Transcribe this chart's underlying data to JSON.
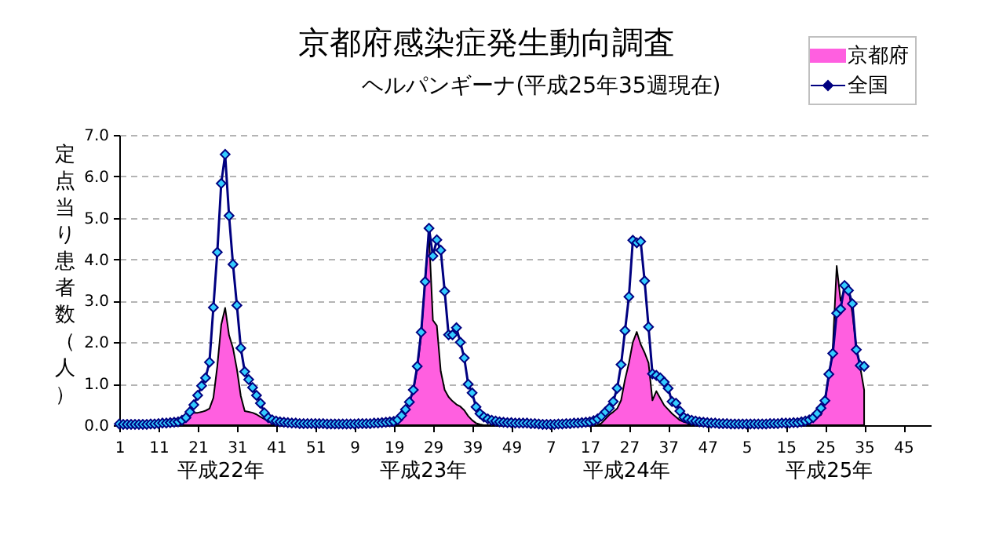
{
  "chart_data": {
    "type": "line",
    "title": "京都府感染症発生動向調査",
    "subtitle": "ヘルパンギーナ(平成25年35週現在)",
    "ylabel": "定点当り患者数（人）",
    "categories": [
      "1",
      null,
      null,
      null,
      null,
      null,
      null,
      null,
      null,
      null,
      "11",
      null,
      null,
      null,
      null,
      null,
      null,
      null,
      null,
      null,
      "21",
      null,
      null,
      null,
      null,
      null,
      null,
      null,
      null,
      null,
      "31",
      null,
      null,
      null,
      null,
      null,
      null,
      null,
      null,
      null,
      "41",
      null,
      null,
      null,
      null,
      null,
      null,
      null,
      null,
      null,
      "51",
      null,
      null,
      null,
      null,
      null,
      null,
      null,
      null,
      null,
      "9",
      null,
      null,
      null,
      null,
      null,
      null,
      null,
      null,
      null,
      "19",
      null,
      null,
      null,
      null,
      null,
      null,
      null,
      null,
      null,
      "29",
      null,
      null,
      null,
      null,
      null,
      null,
      null,
      null,
      null,
      "39",
      null,
      null,
      null,
      null,
      null,
      null,
      null,
      null,
      null,
      "49",
      null,
      null,
      null,
      null,
      null,
      null,
      null,
      null,
      null,
      "7",
      null,
      null,
      null,
      null,
      null,
      null,
      null,
      null,
      null,
      "17",
      null,
      null,
      null,
      null,
      null,
      null,
      null,
      null,
      null,
      "27",
      null,
      null,
      null,
      null,
      null,
      null,
      null,
      null,
      null,
      "37",
      null,
      null,
      null,
      null,
      null,
      null,
      null,
      null,
      null,
      "47",
      null,
      null,
      null,
      null,
      null,
      null,
      null,
      null,
      null,
      "5",
      null,
      null,
      null,
      null,
      null,
      null,
      null,
      null,
      null,
      "15",
      null,
      null,
      null,
      null,
      null,
      null,
      null,
      null,
      null,
      "25",
      null,
      null,
      null,
      null,
      null,
      null,
      null,
      null,
      null,
      "35",
      null,
      null,
      null,
      null,
      null,
      null,
      null,
      null,
      null,
      "45",
      null,
      null,
      null,
      null,
      null,
      null,
      null
    ],
    "series": [
      {
        "name": "京都府",
        "type": "area",
        "color": "#ff5fe0",
        "values": [
          0,
          0,
          0,
          0,
          0,
          0,
          0,
          0,
          0,
          0,
          0,
          0,
          0,
          0,
          0,
          0,
          0.05,
          0.15,
          0.28,
          0.3,
          0.3,
          0.32,
          0.35,
          0.4,
          0.66,
          1.42,
          2.42,
          2.83,
          2.17,
          1.86,
          1.35,
          0.7,
          0.34,
          0.32,
          0.3,
          0.26,
          0.2,
          0.15,
          0.1,
          0.06,
          0.03,
          0,
          0,
          0,
          0,
          0,
          0,
          0,
          0,
          0,
          0,
          0,
          0,
          0,
          0,
          0,
          0,
          0,
          0,
          0,
          0,
          0,
          0,
          0,
          0,
          0,
          0,
          0,
          0,
          0.05,
          0.1,
          0.16,
          0.25,
          0.38,
          0.57,
          0.82,
          1.39,
          2.15,
          3.54,
          4.6,
          2.53,
          2.4,
          1.3,
          0.85,
          0.68,
          0.58,
          0.5,
          0.45,
          0.36,
          0.22,
          0.12,
          0.05,
          0.02,
          0,
          0,
          0,
          0,
          0,
          0,
          0,
          0,
          0,
          0,
          0,
          0,
          0,
          0,
          0,
          0,
          0,
          0,
          0,
          0,
          0,
          0,
          0,
          0,
          0,
          0,
          0,
          0,
          0,
          0,
          0.05,
          0.15,
          0.25,
          0.32,
          0.4,
          0.6,
          1.1,
          1.5,
          2.0,
          2.25,
          1.95,
          1.75,
          1.5,
          0.6,
          0.82,
          0.65,
          0.48,
          0.38,
          0.28,
          0.2,
          0.12,
          0.08,
          0.05,
          0,
          0,
          0,
          0,
          0,
          0,
          0,
          0,
          0,
          0,
          0,
          0,
          0,
          0,
          0,
          0,
          0,
          0,
          0,
          0,
          0,
          0,
          0,
          0,
          0,
          0,
          0.02,
          0.04,
          0.06,
          0.1,
          0.12,
          0.15,
          0.2,
          0.25,
          0.59,
          1.16,
          1.86,
          3.84,
          3.0,
          3.25,
          3.3,
          2.7,
          1.9,
          1.4,
          0.85,
          null,
          null,
          null,
          null,
          null,
          null,
          null,
          null,
          null,
          null,
          null,
          null,
          null,
          null,
          null,
          null,
          null
        ]
      },
      {
        "name": "全国",
        "color": "#000080",
        "marker": "diamond",
        "values": [
          0.03,
          0.02,
          0.02,
          0.02,
          0.02,
          0.02,
          0.02,
          0.02,
          0.03,
          0.03,
          0.04,
          0.05,
          0.05,
          0.06,
          0.07,
          0.08,
          0.12,
          0.18,
          0.32,
          0.49,
          0.72,
          0.95,
          1.14,
          1.52,
          2.84,
          4.17,
          5.83,
          6.53,
          5.05,
          3.88,
          2.89,
          1.86,
          1.29,
          1.1,
          0.91,
          0.72,
          0.53,
          0.3,
          0.18,
          0.13,
          0.1,
          0.08,
          0.07,
          0.06,
          0.05,
          0.05,
          0.04,
          0.04,
          0.04,
          0.04,
          0.04,
          0.04,
          0.04,
          0.03,
          0.03,
          0.03,
          0.03,
          0.03,
          0.03,
          0.03,
          0.03,
          0.04,
          0.04,
          0.04,
          0.04,
          0.05,
          0.05,
          0.06,
          0.07,
          0.08,
          0.09,
          0.13,
          0.23,
          0.38,
          0.56,
          0.85,
          1.42,
          2.24,
          3.46,
          4.75,
          4.08,
          4.47,
          4.22,
          3.23,
          2.18,
          2.18,
          2.35,
          2.0,
          1.62,
          0.99,
          0.78,
          0.44,
          0.28,
          0.2,
          0.15,
          0.12,
          0.1,
          0.08,
          0.07,
          0.06,
          0.06,
          0.05,
          0.05,
          0.05,
          0.05,
          0.04,
          0.04,
          0.03,
          0.02,
          0.02,
          0.02,
          0.02,
          0.03,
          0.03,
          0.04,
          0.04,
          0.05,
          0.05,
          0.06,
          0.07,
          0.08,
          0.11,
          0.15,
          0.22,
          0.32,
          0.41,
          0.57,
          0.89,
          1.46,
          2.28,
          3.1,
          4.46,
          4.4,
          4.43,
          3.48,
          2.37,
          1.24,
          1.2,
          1.14,
          1.04,
          0.89,
          0.57,
          0.53,
          0.34,
          0.19,
          0.15,
          0.12,
          0.1,
          0.08,
          0.07,
          0.06,
          0.05,
          0.05,
          0.04,
          0.04,
          0.04,
          0.03,
          0.03,
          0.03,
          0.03,
          0.03,
          0.03,
          0.03,
          0.03,
          0.03,
          0.03,
          0.04,
          0.04,
          0.04,
          0.05,
          0.05,
          0.05,
          0.06,
          0.06,
          0.08,
          0.1,
          0.13,
          0.18,
          0.28,
          0.41,
          0.59,
          1.23,
          1.73,
          2.7,
          2.8,
          3.37,
          3.25,
          2.93,
          1.82,
          1.44,
          1.42,
          null,
          null,
          null,
          null,
          null,
          null,
          null,
          null,
          null,
          null,
          null,
          null,
          null,
          null,
          null,
          null,
          null
        ]
      }
    ],
    "ylim": [
      0,
      7
    ],
    "yticks": [
      {
        "value": 0,
        "label": "0.0"
      },
      {
        "value": 1,
        "label": "1.0"
      },
      {
        "value": 2,
        "label": "2.0"
      },
      {
        "value": 3,
        "label": "3.0"
      },
      {
        "value": 4,
        "label": "4.0"
      },
      {
        "value": 5,
        "label": "5.0"
      },
      {
        "value": 6,
        "label": "6.0"
      },
      {
        "value": 7,
        "label": "7.0"
      }
    ],
    "grid": "y",
    "legend": "top right",
    "annotations": [
      "平成22年",
      "平成23年",
      "平成24年",
      "平成25年"
    ]
  }
}
